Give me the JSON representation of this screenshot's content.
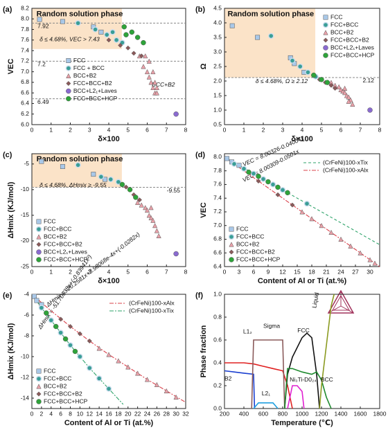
{
  "chart_data": [
    {
      "type": "scatter",
      "label": "(a)",
      "xlabel": "δ×100",
      "ylabel": "VEC",
      "xlim": [
        0,
        8
      ],
      "xticks": [
        0,
        1,
        2,
        3,
        4,
        5,
        6,
        7,
        8
      ],
      "ylim": [
        6,
        8.2
      ],
      "yticks": [
        {
          "value": 6,
          "label": "6.0"
        },
        6.2,
        6.4,
        6.6,
        6.8,
        {
          "value": 7,
          "label": "7.0"
        },
        7.2,
        7.4,
        7.6,
        7.8,
        {
          "value": 8,
          "label": "8.0"
        },
        8.2
      ],
      "region": {
        "x": [
          0,
          4.68
        ],
        "y": [
          7.43,
          8.2
        ]
      },
      "hlines": [
        7.92,
        7.2,
        6.49
      ],
      "annotations": [
        "Random solution phase",
        "δ ≤ 4.68%, VEC > 7.43",
        "BCC+B2"
      ],
      "legend": "lower-center",
      "series": [
        {
          "name": "FCC",
          "color": "#a9c8e8",
          "marker": "square",
          "x": [
            0.4,
            1.6,
            3.2,
            3.6
          ],
          "values": [
            7.99,
            7.95,
            7.85,
            7.75
          ]
        },
        {
          "name": "FCC + BCC",
          "color": "#3a9e96",
          "marker": "half",
          "x": [
            2.4,
            3.3,
            3.9,
            4.2,
            4.4,
            4.7
          ],
          "values": [
            7.92,
            7.8,
            7.7,
            7.75,
            7.6,
            7.55
          ]
        },
        {
          "name": "BCC+B2",
          "color": "#e8a0a8",
          "marker": "triangle",
          "x": [
            5.6,
            5.8,
            5.9,
            6.0,
            6.1,
            6.1,
            6.2,
            6.3,
            6.3,
            6.4,
            6.4,
            6.5,
            6.5
          ],
          "values": [
            7.3,
            7.1,
            7.3,
            7.0,
            6.9,
            7.2,
            6.8,
            6.7,
            7.0,
            6.6,
            6.8,
            6.6,
            6.7
          ]
        },
        {
          "name": "FCC+BCC+B2",
          "color": "#8a5a5a",
          "marker": "diamond",
          "x": [
            4.0,
            4.6,
            5.0,
            5.3,
            5.7
          ],
          "values": [
            7.6,
            7.5,
            7.45,
            7.35,
            7.3
          ]
        },
        {
          "name": "BCC+L2₁+Laves",
          "color": "#8a6bd0",
          "marker": "circle",
          "x": [
            7.5
          ],
          "values": [
            6.2
          ]
        },
        {
          "name": "FCC+BCC+HCP",
          "color": "#2ea33a",
          "marker": "circle",
          "x": [
            4.8,
            4.9,
            5.2,
            5.5,
            5.8
          ],
          "values": [
            7.85,
            7.7,
            7.75,
            7.65,
            7.55
          ]
        }
      ]
    },
    {
      "type": "scatter",
      "label": "(b)",
      "xlabel": "δ×100",
      "ylabel": "Ω",
      "xlim": [
        0,
        8
      ],
      "xticks": [
        0,
        1,
        2,
        3,
        4,
        5,
        6,
        7,
        8
      ],
      "ylim": [
        0.5,
        4.5
      ],
      "yticks": [
        0.5,
        {
          "value": 1,
          "label": "1.0"
        },
        1.5,
        {
          "value": 2,
          "label": "2.0"
        },
        2.5,
        {
          "value": 3,
          "label": "3.0"
        },
        3.5,
        {
          "value": 4,
          "label": "4.0"
        },
        4.5
      ],
      "region": {
        "x": [
          0,
          4.68
        ],
        "y": [
          2.12,
          4.5
        ]
      },
      "hlines": [
        2.12
      ],
      "annotations": [
        "Random solution phase",
        "δ ≤ 4.68%, Ω ≥ 2.12"
      ],
      "legend": "upper-right",
      "series": [
        {
          "name": "FCC",
          "color": "#a9c8e8",
          "marker": "square",
          "x": [
            0.4,
            1.7,
            3.4,
            3.6,
            4.1
          ],
          "values": [
            3.9,
            3.5,
            2.8,
            2.6,
            2.3
          ]
        },
        {
          "name": "FCC+BCC",
          "color": "#3a9e96",
          "marker": "half",
          "x": [
            2.4,
            3.5,
            3.9,
            4.3,
            4.7
          ],
          "values": [
            3.55,
            2.7,
            2.5,
            2.3,
            2.15
          ]
        },
        {
          "name": "BCC+B2",
          "color": "#e8a0a8",
          "marker": "triangle",
          "x": [
            5.5,
            5.7,
            5.9,
            6.0,
            6.1,
            6.2,
            6.3,
            6.4,
            6.5,
            6.6,
            6.2,
            6.4
          ],
          "values": [
            1.95,
            1.85,
            1.8,
            1.7,
            1.65,
            1.6,
            1.5,
            1.45,
            1.35,
            1.2,
            1.75,
            1.3
          ]
        },
        {
          "name": "FCC+BCC+B2",
          "color": "#8a5a5a",
          "marker": "diamond",
          "x": [
            4.9,
            5.2,
            5.5,
            5.7
          ],
          "values": [
            2.05,
            1.95,
            1.85,
            1.75
          ]
        },
        {
          "name": "BCC+L2₁+Laves",
          "color": "#8a6bd0",
          "marker": "circle",
          "x": [
            7.5
          ],
          "values": [
            1.0
          ]
        },
        {
          "name": "FCC+BCC+HCP",
          "color": "#2ea33a",
          "marker": "circle",
          "x": [
            4.6,
            5.0,
            5.3
          ],
          "values": [
            2.2,
            2.05,
            1.95
          ]
        }
      ]
    },
    {
      "type": "scatter",
      "label": "(c)",
      "xlabel": "δ×100",
      "ylabel": "ΔHmix (KJ/mol)",
      "xlim": [
        0,
        8
      ],
      "xticks": [
        0,
        1,
        2,
        3,
        4,
        5,
        6,
        7,
        8
      ],
      "ylim": [
        -25,
        -3
      ],
      "yticks": [
        -25,
        -20,
        -15,
        -10,
        -5
      ],
      "region": {
        "x": [
          0,
          4.68
        ],
        "y": [
          -9.55,
          -3
        ]
      },
      "hlines": [
        -9.55
      ],
      "annotations": [
        "Random solution phase",
        "δ ≤ 4.68%, ΔHmix ≥ -9.55"
      ],
      "legend": "lower-left",
      "series": [
        {
          "name": "FCC",
          "color": "#a9c8e8",
          "marker": "square",
          "x": [
            0.5,
            1.6,
            3.2,
            3.8
          ],
          "values": [
            -4.5,
            -5.5,
            -7,
            -8
          ]
        },
        {
          "name": "FCC+BCC",
          "color": "#3a9e96",
          "marker": "half",
          "x": [
            2.4,
            3.6,
            4.1,
            4.5
          ],
          "values": [
            -5.2,
            -7.5,
            -8,
            -8.5
          ]
        },
        {
          "name": "BCC+B2",
          "color": "#e8a0a8",
          "marker": "triangle",
          "x": [
            5.5,
            5.7,
            5.9,
            6.0,
            6.1,
            6.2,
            6.3,
            6.4,
            6.5,
            6.6,
            6.2
          ],
          "values": [
            -12.5,
            -13,
            -13.5,
            -14,
            -15,
            -15.5,
            -16,
            -17,
            -18,
            -19,
            -13.5
          ]
        },
        {
          "name": "FCC+BCC+B2",
          "color": "#8a5a5a",
          "marker": "diamond",
          "x": [
            4.9,
            5.3,
            5.6
          ],
          "values": [
            -9.5,
            -11,
            -12
          ]
        },
        {
          "name": "BCC+L2₁+Laves",
          "color": "#8a6bd0",
          "marker": "circle",
          "x": [
            7.5
          ],
          "values": [
            -22.5
          ]
        },
        {
          "name": "FCC+BCC+HCP",
          "color": "#2ea33a",
          "marker": "circle",
          "x": [
            4.7,
            5.1,
            5.4
          ],
          "values": [
            -9,
            -10,
            -11.5
          ]
        }
      ]
    },
    {
      "type": "scatter",
      "label": "(d)",
      "xlabel": "Content of Al or Ti (at.%)",
      "ylabel": "VEC",
      "xlim": [
        0,
        32
      ],
      "xticks": [
        0,
        3,
        6,
        9,
        12,
        15,
        18,
        21,
        24,
        27,
        30
      ],
      "ylim": [
        6.4,
        8.05
      ],
      "yticks": [
        6.4,
        6.6,
        6.8,
        {
          "value": 7,
          "label": "7.0"
        },
        7.2,
        7.4,
        7.6,
        7.8,
        {
          "value": 8,
          "label": "8.0"
        }
      ],
      "annotations": [
        "VEC = 8.00326-0.04004x",
        "VEC = 8.00309-0.0501x"
      ],
      "legend": "lower-left",
      "line_legend": "upper-right",
      "series": [
        {
          "name": "(CrFeNi)100-xTix",
          "color": "#2ea36a",
          "kind": "line",
          "dash": "4 3",
          "x": [
            0,
            32
          ],
          "values": [
            8.0,
            6.72
          ]
        },
        {
          "name": "(CrFeNi)100-xAlx",
          "color": "#d9404a",
          "kind": "line",
          "dash": "6 2 2 2",
          "x": [
            0,
            32
          ],
          "values": [
            8.0,
            6.4
          ]
        },
        {
          "name": "FCC",
          "color": "#a9c8e8",
          "marker": "square",
          "x": [
            0.5,
            1.5,
            3
          ],
          "values": [
            7.98,
            7.93,
            7.88
          ]
        },
        {
          "name": "FCC+BCC",
          "color": "#3a9e96",
          "marker": "half",
          "x": [
            2,
            4,
            6,
            8,
            10,
            12,
            17
          ],
          "values": [
            7.9,
            7.83,
            7.76,
            7.68,
            7.6,
            7.52,
            7.32
          ]
        },
        {
          "name": "BCC+B2",
          "color": "#e8a0a8",
          "marker": "triangle",
          "x": [
            16,
            18,
            20,
            22,
            24,
            26,
            28,
            30,
            31
          ],
          "values": [
            7.2,
            7.1,
            7.0,
            6.9,
            6.8,
            6.7,
            6.6,
            6.5,
            6.45
          ]
        },
        {
          "name": "FCC+BCC+B2",
          "color": "#8a5a5a",
          "marker": "diamond",
          "x": [
            7,
            11,
            14
          ],
          "values": [
            7.65,
            7.45,
            7.3
          ]
        },
        {
          "name": "FCC+BCC+HCP",
          "color": "#2ea33a",
          "marker": "circle",
          "x": [
            5,
            7,
            9,
            11,
            13
          ],
          "values": [
            7.78,
            7.72,
            7.64,
            7.56,
            7.48
          ]
        }
      ]
    },
    {
      "type": "scatter",
      "label": "(e)",
      "xlabel": "Content of Al or Ti (at.%)",
      "ylabel": "ΔHmix (KJ/mol)",
      "xlim": [
        0,
        32
      ],
      "xticks": [
        0,
        2,
        4,
        6,
        8,
        10,
        12,
        14,
        16,
        18,
        20,
        22,
        24,
        26,
        28,
        30,
        32
      ],
      "ylim": [
        -15,
        -4
      ],
      "yticks": [
        -14,
        -12,
        -10,
        -8,
        -6,
        -4
      ],
      "annotations": [
        "ΔHmix = -20.2581x+3.98068e-4x+(-0.0282x)",
        "ΔHmix = -51.70638x+(-0.83941x²)"
      ],
      "legend": "lower-left",
      "line_legend": "upper-right",
      "series": [
        {
          "name": "(CrFeNi)100-xAlx",
          "color": "#d9404a",
          "kind": "line",
          "dash": "6 2 2 2",
          "x": [
            0,
            4,
            8,
            12,
            16,
            20,
            24,
            28,
            32
          ],
          "values": [
            -4,
            -5.6,
            -7.1,
            -8.5,
            -9.8,
            -11,
            -12.2,
            -13.3,
            -14.4
          ]
        },
        {
          "name": "(CrFeNi)100-xTix",
          "color": "#2ea36a",
          "kind": "line",
          "dash": "6 2 2 2",
          "x": [
            0,
            2,
            4,
            6,
            8,
            10,
            12,
            14,
            16,
            18,
            19
          ],
          "values": [
            -4,
            -5.3,
            -6.5,
            -7.7,
            -8.9,
            -10,
            -11.1,
            -12.1,
            -13.1,
            -14.1,
            -14.6
          ]
        },
        {
          "name": "FCC",
          "color": "#a9c8e8",
          "marker": "square",
          "x": [
            0.5,
            1,
            2
          ],
          "values": [
            -4.2,
            -4.6,
            -5.0
          ]
        },
        {
          "name": "FCC+BCC",
          "color": "#3a9e96",
          "marker": "half",
          "x": [
            2,
            4,
            6,
            8,
            10,
            12,
            14,
            16
          ],
          "values": [
            -5.3,
            -6.5,
            -7.7,
            -8.9,
            -10,
            -11.1,
            -12.1,
            -13.1
          ]
        },
        {
          "name": "BCC+B2",
          "color": "#e8a0a8",
          "marker": "triangle",
          "x": [
            14,
            16,
            18,
            20,
            22,
            24,
            26,
            28,
            30
          ],
          "values": [
            -9.2,
            -9.8,
            -10.4,
            -11,
            -11.6,
            -12.2,
            -12.7,
            -13.3,
            -13.9
          ]
        },
        {
          "name": "FCC+BCC+B2",
          "color": "#8a5a5a",
          "marker": "diamond",
          "x": [
            6,
            8,
            10,
            12
          ],
          "values": [
            -6.4,
            -7.1,
            -7.8,
            -8.5
          ]
        },
        {
          "name": "FCC+BCC+HCP",
          "color": "#2ea33a",
          "marker": "circle",
          "x": [
            3,
            5,
            7,
            9
          ],
          "values": [
            -5.8,
            -7.1,
            -8.3,
            -9.5
          ]
        }
      ]
    },
    {
      "type": "line",
      "label": "(f)",
      "xlabel": "Temperature (℃)",
      "ylabel": "Phase fraction",
      "xlim": [
        200,
        1800
      ],
      "xticks": [
        200,
        400,
        600,
        800,
        1000,
        1200,
        1400,
        1600,
        1800
      ],
      "ylim": [
        0,
        1
      ],
      "yticks": [
        {
          "value": 0,
          "label": "0.0"
        },
        0.2,
        0.4,
        0.6,
        0.8,
        {
          "value": 1,
          "label": "1.0"
        }
      ],
      "series": [
        {
          "name": "L1₂",
          "color": "#e02020",
          "x": [
            200,
            300,
            400,
            500,
            600,
            700,
            800,
            850,
            900
          ],
          "values": [
            0.4,
            0.4,
            0.4,
            0.39,
            0.37,
            0.35,
            0.33,
            0.2,
            0
          ]
        },
        {
          "name": "B2",
          "color": "#1a3fd0",
          "x": [
            200,
            300,
            400,
            500,
            510
          ],
          "values": [
            0.33,
            0.32,
            0.31,
            0.3,
            0
          ]
        },
        {
          "name": "Sigma",
          "color": "#8a5a5a",
          "x": [
            480,
            500,
            800,
            820
          ],
          "values": [
            0,
            0.6,
            0.6,
            0
          ]
        },
        {
          "name": "FCC",
          "color": "#111111",
          "x": [
            820,
            850,
            900,
            1000,
            1050,
            1100,
            1150,
            1180
          ],
          "values": [
            0,
            0.3,
            0.45,
            0.62,
            0.66,
            0.62,
            0.3,
            0
          ]
        },
        {
          "name": "BCC",
          "color": "#1e8a2e",
          "x": [
            820,
            850,
            900,
            1000,
            1100,
            1150,
            1200,
            1250,
            1300
          ],
          "values": [
            0,
            0.35,
            0.35,
            0.32,
            0.3,
            0.32,
            0.25,
            0.1,
            0
          ]
        },
        {
          "name": "Liquid",
          "color": "#8a9a20",
          "x": [
            1180,
            1200,
            1250,
            1300,
            1330
          ],
          "values": [
            0,
            0.2,
            0.55,
            0.9,
            1.0
          ]
        },
        {
          "name": "Ni₃Ti-D0₂₄",
          "color": "#e020d0",
          "x": [
            850,
            900,
            950,
            1000,
            1020
          ],
          "values": [
            0,
            0.2,
            0.2,
            0.15,
            0
          ]
        },
        {
          "name": "L2₁",
          "color": "#20a0e0",
          "x": [
            500,
            550,
            700,
            750
          ],
          "values": [
            0,
            0.05,
            0.05,
            0
          ]
        }
      ]
    }
  ]
}
